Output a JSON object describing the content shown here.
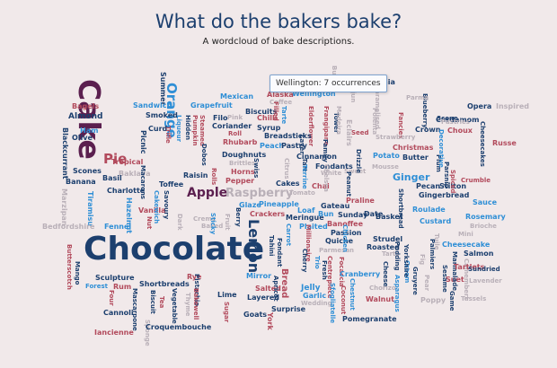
{
  "title": "What do the bakers bake?",
  "subtitle": "A wordcloud of bake descriptions.",
  "tooltip": {
    "text": "Wellington: 7 occurrences"
  },
  "colors": {
    "navy": "#1c3f6e",
    "purple": "#5b1f4f",
    "blue": "#2f8fd6",
    "rose": "#b24a5c",
    "grey": "#b9b0b8"
  },
  "chart_data": {
    "type": "wordcloud",
    "words": [
      {
        "text": "Chocolate",
        "c": "navy",
        "r": 0
      },
      {
        "text": "Cake",
        "c": "purple",
        "r": 1
      },
      {
        "text": "Orange",
        "c": "blue",
        "r": 1
      },
      {
        "text": "Pie",
        "c": "rose",
        "r": 0
      },
      {
        "text": "Apple",
        "c": "purple",
        "r": 0
      },
      {
        "text": "Raspberry",
        "c": "grey",
        "r": 0
      },
      {
        "text": "Lemon",
        "c": "navy",
        "r": 1
      },
      {
        "text": "Ginger",
        "c": "blue",
        "r": 0
      },
      {
        "text": "Bread",
        "c": "rose",
        "r": 1
      },
      {
        "text": "Summer",
        "c": "navy",
        "r": 1
      },
      {
        "text": "Eclairs",
        "c": "grey",
        "r": 1
      },
      {
        "text": "Bagels",
        "c": "rose",
        "r": 0
      },
      {
        "text": "Almond",
        "c": "navy",
        "r": 0
      },
      {
        "text": "Blackcurrant",
        "c": "navy",
        "r": 1
      },
      {
        "text": "Ham",
        "c": "blue",
        "r": 0
      },
      {
        "text": "Olive",
        "c": "navy",
        "r": 0
      },
      {
        "text": "Sandwich",
        "c": "blue",
        "r": 0
      },
      {
        "text": "Smoked",
        "c": "navy",
        "r": 0
      },
      {
        "text": "Curd",
        "c": "navy",
        "r": 0
      },
      {
        "text": "Picnic",
        "c": "navy",
        "r": 1
      },
      {
        "text": "Trifle",
        "c": "rose",
        "r": 1
      },
      {
        "text": "Tropical",
        "c": "rose",
        "r": 0
      },
      {
        "text": "Scones",
        "c": "navy",
        "r": 0
      },
      {
        "text": "Baklava",
        "c": "grey",
        "r": 0
      },
      {
        "text": "Banana",
        "c": "navy",
        "r": 0
      },
      {
        "text": "Basil",
        "c": "navy",
        "r": 0
      },
      {
        "text": "Charlotte",
        "c": "navy",
        "r": 0
      },
      {
        "text": "Marzipan",
        "c": "grey",
        "r": 1
      },
      {
        "text": "Tiramisu",
        "c": "blue",
        "r": 1
      },
      {
        "text": "Hazelnut",
        "c": "blue",
        "r": 1
      },
      {
        "text": "Fennel",
        "c": "blue",
        "r": 0
      },
      {
        "text": "Bedfordshire",
        "c": "grey",
        "r": 0
      },
      {
        "text": "Vanilla",
        "c": "rose",
        "r": 0
      },
      {
        "text": "Nut",
        "c": "rose",
        "r": 1
      },
      {
        "text": "Butterscotch",
        "c": "rose",
        "r": 1
      },
      {
        "text": "Mango",
        "c": "navy",
        "r": 1
      },
      {
        "text": "Forest",
        "c": "blue",
        "r": 0
      },
      {
        "text": "Sculpture",
        "c": "navy",
        "r": 0
      },
      {
        "text": "Rum",
        "c": "rose",
        "r": 0
      },
      {
        "text": "Four",
        "c": "rose",
        "r": 1
      },
      {
        "text": "Cannoli",
        "c": "navy",
        "r": 0
      },
      {
        "text": "Mascarpone",
        "c": "navy",
        "r": 1
      },
      {
        "text": "Iancienne",
        "c": "rose",
        "r": 0
      },
      {
        "text": "Shortbreads",
        "c": "navy",
        "r": 0
      },
      {
        "text": "Biscuit",
        "c": "navy",
        "r": 1
      },
      {
        "text": "Tea",
        "c": "rose",
        "r": 1
      },
      {
        "text": "Vegetable",
        "c": "navy",
        "r": 1
      },
      {
        "text": "Sponge",
        "c": "grey",
        "r": 1
      },
      {
        "text": "Croquembouche",
        "c": "navy",
        "r": 0
      },
      {
        "text": "Rye",
        "c": "rose",
        "r": 0
      },
      {
        "text": "Pistachio",
        "c": "navy",
        "r": 1
      },
      {
        "text": "Thyme",
        "c": "grey",
        "r": 1
      },
      {
        "text": "Bakewell",
        "c": "rose",
        "r": 1
      },
      {
        "text": "Lime",
        "c": "navy",
        "r": 0
      },
      {
        "text": "Sugar",
        "c": "rose",
        "r": 1
      },
      {
        "text": "Goats",
        "c": "navy",
        "r": 0
      },
      {
        "text": "Layered",
        "c": "navy",
        "r": 0
      },
      {
        "text": "Salted",
        "c": "rose",
        "r": 0
      },
      {
        "text": "Mirror",
        "c": "blue",
        "r": 0
      },
      {
        "text": "Surprise",
        "c": "navy",
        "r": 0
      },
      {
        "text": "York",
        "c": "rose",
        "r": 1
      },
      {
        "text": "Apricot",
        "c": "navy",
        "r": 1
      },
      {
        "text": "Jelly",
        "c": "blue",
        "r": 0
      },
      {
        "text": "Garlic",
        "c": "blue",
        "r": 0
      },
      {
        "text": "Wedding",
        "c": "grey",
        "r": 0
      },
      {
        "text": "Grapefruit",
        "c": "blue",
        "r": 0
      },
      {
        "text": "Liqueur",
        "c": "blue",
        "r": 1
      },
      {
        "text": "Hidden",
        "c": "navy",
        "r": 1
      },
      {
        "text": "Pumpkin",
        "c": "rose",
        "r": 1
      },
      {
        "text": "Steamed",
        "c": "rose",
        "r": 1
      },
      {
        "text": "Filo",
        "c": "navy",
        "r": 0
      },
      {
        "text": "Pink",
        "c": "grey",
        "r": 0
      },
      {
        "text": "Coriander",
        "c": "navy",
        "r": 0
      },
      {
        "text": "Rhubarb",
        "c": "rose",
        "r": 0
      },
      {
        "text": "Mexican",
        "c": "blue",
        "r": 0
      },
      {
        "text": "Biscuits",
        "c": "navy",
        "r": 0
      },
      {
        "text": "Chilli",
        "c": "rose",
        "r": 0
      },
      {
        "text": "Syrup",
        "c": "navy",
        "r": 0
      },
      {
        "text": "Roll",
        "c": "rose",
        "r": 0
      },
      {
        "text": "Doughnuts",
        "c": "navy",
        "r": 0
      },
      {
        "text": "Brittles",
        "c": "grey",
        "r": 0
      },
      {
        "text": "Horns",
        "c": "rose",
        "r": 0
      },
      {
        "text": "Pepper",
        "c": "rose",
        "r": 0
      },
      {
        "text": "Raisin",
        "c": "navy",
        "r": 0
      },
      {
        "text": "Dobos",
        "c": "navy",
        "r": 1
      },
      {
        "text": "Toffee",
        "c": "navy",
        "r": 0
      },
      {
        "text": "Savoury",
        "c": "navy",
        "r": 1
      },
      {
        "text": "Cakewich",
        "c": "blue",
        "r": 1
      },
      {
        "text": "Macarons",
        "c": "navy",
        "r": 1
      },
      {
        "text": "Creme",
        "c": "grey",
        "r": 0
      },
      {
        "text": "Baked",
        "c": "grey",
        "r": 0
      },
      {
        "text": "Dark",
        "c": "grey",
        "r": 1
      },
      {
        "text": "Swiss",
        "c": "navy",
        "r": 1
      },
      {
        "text": "Rolls",
        "c": "rose",
        "r": 1
      },
      {
        "text": "Fruit",
        "c": "grey",
        "r": 1
      },
      {
        "text": "Sticky",
        "c": "blue",
        "r": 1
      },
      {
        "text": "Berry",
        "c": "navy",
        "r": 1
      },
      {
        "text": "Tart",
        "c": "navy",
        "r": 1
      },
      {
        "text": "Tarte",
        "c": "blue",
        "r": 1
      },
      {
        "text": "Tower",
        "c": "navy",
        "r": 1
      },
      {
        "text": "Frangipane",
        "c": "rose",
        "r": 1
      },
      {
        "text": "Elderflower",
        "c": "rose",
        "r": 1
      },
      {
        "text": "Wellington",
        "c": "blue",
        "r": 0
      },
      {
        "text": "Alaska",
        "c": "rose",
        "r": 0
      },
      {
        "text": "Coffee",
        "c": "grey",
        "r": 0
      },
      {
        "text": "Filled",
        "c": "rose",
        "r": 1
      },
      {
        "text": "Breadsticks",
        "c": "navy",
        "r": 0
      },
      {
        "text": "Peach",
        "c": "blue",
        "r": 0
      },
      {
        "text": "Pastry",
        "c": "navy",
        "r": 0
      },
      {
        "text": "Cinnamon",
        "c": "navy",
        "r": 0
      },
      {
        "text": "Citrus",
        "c": "grey",
        "r": 1
      },
      {
        "text": "Fondants",
        "c": "navy",
        "r": 0
      },
      {
        "text": "Cakes",
        "c": "navy",
        "r": 0
      },
      {
        "text": "Terrine",
        "c": "blue",
        "r": 1
      },
      {
        "text": "White",
        "c": "grey",
        "r": 0
      },
      {
        "text": "Tomato",
        "c": "grey",
        "r": 0
      },
      {
        "text": "Chai",
        "c": "rose",
        "r": 0
      },
      {
        "text": "Glaze",
        "c": "blue",
        "r": 0
      },
      {
        "text": "Pineapple",
        "c": "blue",
        "r": 0
      },
      {
        "text": "Crackers",
        "c": "rose",
        "r": 0
      },
      {
        "text": "Loaf",
        "c": "blue",
        "r": 0
      },
      {
        "text": "Meringue",
        "c": "navy",
        "r": 0
      },
      {
        "text": "Plaited",
        "c": "blue",
        "r": 0
      },
      {
        "text": "Carrot",
        "c": "blue",
        "r": 1
      },
      {
        "text": "Tahini",
        "c": "navy",
        "r": 1
      },
      {
        "text": "Fondant",
        "c": "navy",
        "r": 1
      },
      {
        "text": "Gateau",
        "c": "navy",
        "r": 0
      },
      {
        "text": "Bun",
        "c": "blue",
        "r": 0
      },
      {
        "text": "Sunday",
        "c": "navy",
        "r": 0
      },
      {
        "text": "Banoffee",
        "c": "rose",
        "r": 0
      },
      {
        "text": "Passion",
        "c": "navy",
        "r": 0
      },
      {
        "text": "Quiche",
        "c": "navy",
        "r": 0
      },
      {
        "text": "Millionaire",
        "c": "rose",
        "r": 1
      },
      {
        "text": "Cherry",
        "c": "navy",
        "r": 1
      },
      {
        "text": "Parmesan",
        "c": "grey",
        "r": 0
      },
      {
        "text": "Trio",
        "c": "blue",
        "r": 1
      },
      {
        "text": "Fresh",
        "c": "navy",
        "r": 1
      },
      {
        "text": "Centrepiece",
        "c": "rose",
        "r": 1
      },
      {
        "text": "Focaccia",
        "c": "rose",
        "r": 1
      },
      {
        "text": "Sfogliatelle",
        "c": "blue",
        "r": 1
      },
      {
        "text": "Coconut",
        "c": "rose",
        "r": 1
      },
      {
        "text": "Chestnut",
        "c": "blue",
        "r": 1
      },
      {
        "text": "Cranberry",
        "c": "blue",
        "r": 0
      },
      {
        "text": "Walnut",
        "c": "rose",
        "r": 0
      },
      {
        "text": "Chorizo",
        "c": "grey",
        "r": 0
      },
      {
        "text": "Pomegranate",
        "c": "navy",
        "r": 0
      },
      {
        "text": "Strudel",
        "c": "navy",
        "r": 0
      },
      {
        "text": "Roasted",
        "c": "navy",
        "r": 0
      },
      {
        "text": "Tarts",
        "c": "grey",
        "r": 0
      },
      {
        "text": "Cheese",
        "c": "navy",
        "r": 1
      },
      {
        "text": "Asparagus",
        "c": "blue",
        "r": 1
      },
      {
        "text": "Cream",
        "c": "blue",
        "r": 1
      },
      {
        "text": "Pudding",
        "c": "navy",
        "r": 1
      },
      {
        "text": "Yorkshire",
        "c": "navy",
        "r": 1
      },
      {
        "text": "Fig",
        "c": "grey",
        "r": 1
      },
      {
        "text": "Gruyere",
        "c": "navy",
        "r": 1
      },
      {
        "text": "Pear",
        "c": "grey",
        "r": 1
      },
      {
        "text": "Poppy",
        "c": "grey",
        "r": 0
      },
      {
        "text": "Palmiers",
        "c": "navy",
        "r": 1
      },
      {
        "text": "Suet",
        "c": "rose",
        "r": 0
      },
      {
        "text": "Crumble",
        "c": "rose",
        "r": 0
      },
      {
        "text": "Tuile",
        "c": "grey",
        "r": 1
      },
      {
        "text": "Sesame",
        "c": "navy",
        "r": 1
      },
      {
        "text": "Marmalade",
        "c": "navy",
        "r": 1
      },
      {
        "text": "Camembert",
        "c": "grey",
        "r": 1
      },
      {
        "text": "Tartlets",
        "c": "rose",
        "r": 0
      },
      {
        "text": "Gingerbread",
        "c": "navy",
        "r": 0
      },
      {
        "text": "Shortbread",
        "c": "navy",
        "r": 1
      },
      {
        "text": "Pecan",
        "c": "navy",
        "r": 0
      },
      {
        "text": "Stilton",
        "c": "navy",
        "r": 0
      },
      {
        "text": "Sauce",
        "c": "blue",
        "r": 0
      },
      {
        "text": "Roulade",
        "c": "blue",
        "r": 0
      },
      {
        "text": "Rosemary",
        "c": "blue",
        "r": 0
      },
      {
        "text": "Brioche",
        "c": "grey",
        "r": 0
      },
      {
        "text": "Custard",
        "c": "blue",
        "r": 0
      },
      {
        "text": "Cheesecake",
        "c": "blue",
        "r": 0
      },
      {
        "text": "Salmon",
        "c": "navy",
        "r": 0
      },
      {
        "text": "Mini",
        "c": "grey",
        "r": 0
      },
      {
        "text": "Sundried",
        "c": "navy",
        "r": 0
      },
      {
        "text": "Game",
        "c": "navy",
        "r": 1
      },
      {
        "text": "Lavender",
        "c": "grey",
        "r": 0
      },
      {
        "text": "Tassels",
        "c": "grey",
        "r": 0
      },
      {
        "text": "Russe",
        "c": "rose",
        "r": 0
      },
      {
        "text": "Opera",
        "c": "navy",
        "r": 0
      },
      {
        "text": "Inspired",
        "c": "grey",
        "r": 0
      },
      {
        "text": "Cardamom",
        "c": "navy",
        "r": 0
      },
      {
        "text": "Scene",
        "c": "navy",
        "r": 0
      },
      {
        "text": "Choux",
        "c": "rose",
        "r": 0
      },
      {
        "text": "Pastries",
        "c": "grey",
        "r": 0
      },
      {
        "text": "Blueberry",
        "c": "navy",
        "r": 1
      },
      {
        "text": "Christmas",
        "c": "rose",
        "r": 0
      },
      {
        "text": "Crown",
        "c": "navy",
        "r": 0
      },
      {
        "text": "Butter",
        "c": "navy",
        "r": 0
      },
      {
        "text": "Potato",
        "c": "blue",
        "r": 0
      },
      {
        "text": "Plum",
        "c": "navy",
        "r": 1
      },
      {
        "text": "Parsnip",
        "c": "navy",
        "r": 1
      },
      {
        "text": "Spiced",
        "c": "rose",
        "r": 1
      },
      {
        "text": "Parma",
        "c": "grey",
        "r": 0
      },
      {
        "text": "Decorative",
        "c": "blue",
        "r": 1
      },
      {
        "text": "Cheesecakes",
        "c": "navy",
        "r": 1
      },
      {
        "text": "Fancies",
        "c": "rose",
        "r": 1
      },
      {
        "text": "Praline",
        "c": "rose",
        "r": 0
      },
      {
        "text": "Sweet",
        "c": "grey",
        "r": 0
      },
      {
        "text": "Drizzle",
        "c": "navy",
        "r": 1
      },
      {
        "text": "Peanut",
        "c": "navy",
        "r": 1
      },
      {
        "text": "Basket",
        "c": "navy",
        "r": 0
      },
      {
        "text": "Date",
        "c": "navy",
        "r": 0
      },
      {
        "text": "Mousse",
        "c": "grey",
        "r": 0
      },
      {
        "text": "Strawberry",
        "c": "grey",
        "r": 0
      },
      {
        "text": "Polenta",
        "c": "grey",
        "r": 1
      },
      {
        "text": "Caramelised",
        "c": "grey",
        "r": 1
      },
      {
        "text": "Seed",
        "c": "rose",
        "r": 0
      },
      {
        "text": "Family",
        "c": "navy",
        "r": 1
      },
      {
        "text": "Madeira",
        "c": "grey",
        "r": 1
      },
      {
        "text": "Layer",
        "c": "navy",
        "r": 1
      },
      {
        "text": "Chelsea",
        "c": "grey",
        "r": 1
      },
      {
        "text": "Mamia",
        "c": "navy",
        "r": 0
      },
      {
        "text": "Cajun",
        "c": "grey",
        "r": 1
      },
      {
        "text": "Chicken",
        "c": "blue",
        "r": 1
      },
      {
        "text": "Buns",
        "c": "grey",
        "r": 1
      }
    ]
  }
}
